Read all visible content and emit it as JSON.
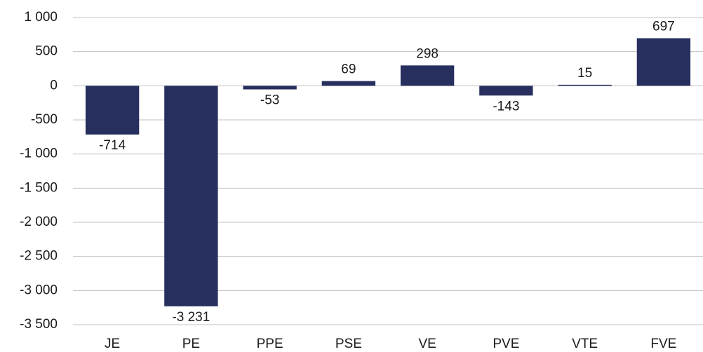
{
  "chart_data": {
    "type": "bar",
    "categories": [
      "JE",
      "PE",
      "PPE",
      "PSE",
      "VE",
      "PVE",
      "VTE",
      "FVE"
    ],
    "values": [
      -714,
      -3231,
      -53,
      69,
      298,
      -143,
      15,
      697
    ],
    "value_labels": [
      "-714",
      "-3 231",
      "-53",
      "69",
      "298",
      "-143",
      "15",
      "697"
    ],
    "color": "#262f5e",
    "ylim": [
      -3500,
      1000
    ],
    "yticks": [
      {
        "value": -3500,
        "label": "-3 500"
      },
      {
        "value": -3000,
        "label": "-3 000"
      },
      {
        "value": -2500,
        "label": "-2 500"
      },
      {
        "value": -2000,
        "label": "-2 000"
      },
      {
        "value": -1500,
        "label": "-1 500"
      },
      {
        "value": -1000,
        "label": "-1 000"
      },
      -500,
      0,
      500,
      {
        "value": 1000,
        "label": "1 000"
      }
    ],
    "grid": true
  }
}
